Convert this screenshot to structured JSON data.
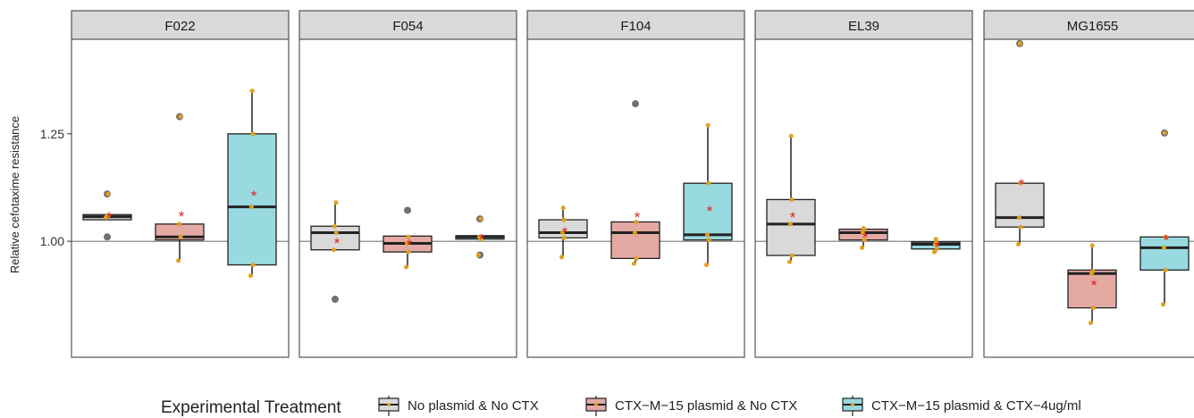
{
  "chart_data": {
    "type": "box",
    "ylabel": "Relative cefotaxime resistance",
    "ylim": [
      0.73,
      1.47
    ],
    "yticks": [
      1.0,
      1.25
    ],
    "ytick_labels": [
      "1.00",
      "1.25"
    ],
    "reference_line": 1.0,
    "legend": {
      "title": "Experimental Treatment",
      "position": "bottom",
      "entries": [
        {
          "label": "No plasmid & No CTX",
          "fill": "#d9d9d9"
        },
        {
          "label": "CTX−M−15 plasmid & No CTX",
          "fill": "#e5a9a4"
        },
        {
          "label": "CTX−M−15 plasmid & CTX−4ug/ml",
          "fill": "#99d9e0"
        }
      ]
    },
    "colors": {
      "point": "#e0a020",
      "outlier": "#707070",
      "mean": "#e02020",
      "strip": "#d9d9d9"
    },
    "panels": [
      {
        "name": "F022",
        "boxes": [
          {
            "min": 1.05,
            "q1": 1.05,
            "median": 1.057,
            "q3": 1.062,
            "max": 1.062,
            "mean": 1.058,
            "points": [
              1.055,
              1.06,
              1.058,
              1.11
            ],
            "outliers": [
              1.01,
              1.11
            ]
          },
          {
            "min": 0.955,
            "q1": 1.003,
            "median": 1.01,
            "q3": 1.04,
            "max": 1.04,
            "mean": 1.06,
            "points": [
              0.955,
              1.01,
              1.04,
              1.29
            ],
            "outliers": [
              1.29
            ]
          },
          {
            "min": 0.92,
            "q1": 0.945,
            "median": 1.08,
            "q3": 1.25,
            "max": 1.35,
            "mean": 1.108,
            "points": [
              0.92,
              0.945,
              1.08,
              1.25,
              1.35
            ],
            "outliers": []
          }
        ]
      },
      {
        "name": "F054",
        "boxes": [
          {
            "min": 0.98,
            "q1": 0.98,
            "median": 1.02,
            "q3": 1.035,
            "max": 1.09,
            "mean": 0.998,
            "points": [
              0.98,
              1.02,
              1.035,
              1.09
            ],
            "outliers": [
              0.865
            ]
          },
          {
            "min": 0.94,
            "q1": 0.975,
            "median": 0.995,
            "q3": 1.012,
            "max": 1.012,
            "mean": 0.995,
            "points": [
              0.94,
              0.975,
              0.995,
              1.01
            ],
            "outliers": [
              1.072
            ]
          },
          {
            "min": 1.005,
            "q1": 1.005,
            "median": 1.01,
            "q3": 1.013,
            "max": 1.013,
            "mean": 1.008,
            "points": [
              0.968,
              1.005,
              1.01,
              1.052
            ],
            "outliers": [
              0.968,
              1.052
            ]
          }
        ]
      },
      {
        "name": "F104",
        "boxes": [
          {
            "min": 0.963,
            "q1": 1.008,
            "median": 1.02,
            "q3": 1.05,
            "max": 1.078,
            "mean": 1.023,
            "points": [
              0.963,
              1.008,
              1.02,
              1.05,
              1.078
            ],
            "outliers": []
          },
          {
            "min": 0.948,
            "q1": 0.96,
            "median": 1.02,
            "q3": 1.045,
            "max": 1.045,
            "mean": 1.058,
            "points": [
              0.948,
              0.96,
              1.02,
              1.045
            ],
            "outliers": [
              1.32
            ]
          },
          {
            "min": 0.945,
            "q1": 1.003,
            "median": 1.015,
            "q3": 1.135,
            "max": 1.27,
            "mean": 1.073,
            "points": [
              0.945,
              1.003,
              1.015,
              1.135,
              1.27
            ],
            "outliers": []
          }
        ]
      },
      {
        "name": "EL39",
        "boxes": [
          {
            "min": 0.952,
            "q1": 0.967,
            "median": 1.04,
            "q3": 1.097,
            "max": 1.245,
            "mean": 1.058,
            "points": [
              0.952,
              0.967,
              1.04,
              1.097,
              1.245
            ],
            "outliers": []
          },
          {
            "min": 0.985,
            "q1": 1.003,
            "median": 1.02,
            "q3": 1.028,
            "max": 1.028,
            "mean": 1.012,
            "points": [
              0.985,
              1.003,
              1.02,
              1.028,
              1.03
            ],
            "outliers": []
          },
          {
            "min": 0.975,
            "q1": 0.982,
            "median": 0.993,
            "q3": 0.998,
            "max": 1.005,
            "mean": 0.99,
            "points": [
              0.975,
              0.982,
              0.993,
              0.998,
              1.005
            ],
            "outliers": []
          }
        ]
      },
      {
        "name": "MG1655",
        "boxes": [
          {
            "min": 0.993,
            "q1": 1.033,
            "median": 1.055,
            "q3": 1.135,
            "max": 1.135,
            "mean": 1.135,
            "points": [
              0.993,
              1.033,
              1.055,
              1.135,
              1.46
            ],
            "outliers": [
              1.46
            ]
          },
          {
            "min": 0.81,
            "q1": 0.845,
            "median": 0.925,
            "q3": 0.933,
            "max": 0.99,
            "mean": 0.9,
            "points": [
              0.81,
              0.845,
              0.925,
              0.93,
              0.99
            ],
            "outliers": []
          },
          {
            "min": 0.853,
            "q1": 0.933,
            "median": 0.985,
            "q3": 1.01,
            "max": 1.01,
            "mean": 1.005,
            "points": [
              0.853,
              0.933,
              0.985,
              1.01,
              1.252
            ],
            "outliers": [
              1.252
            ]
          }
        ]
      }
    ]
  }
}
